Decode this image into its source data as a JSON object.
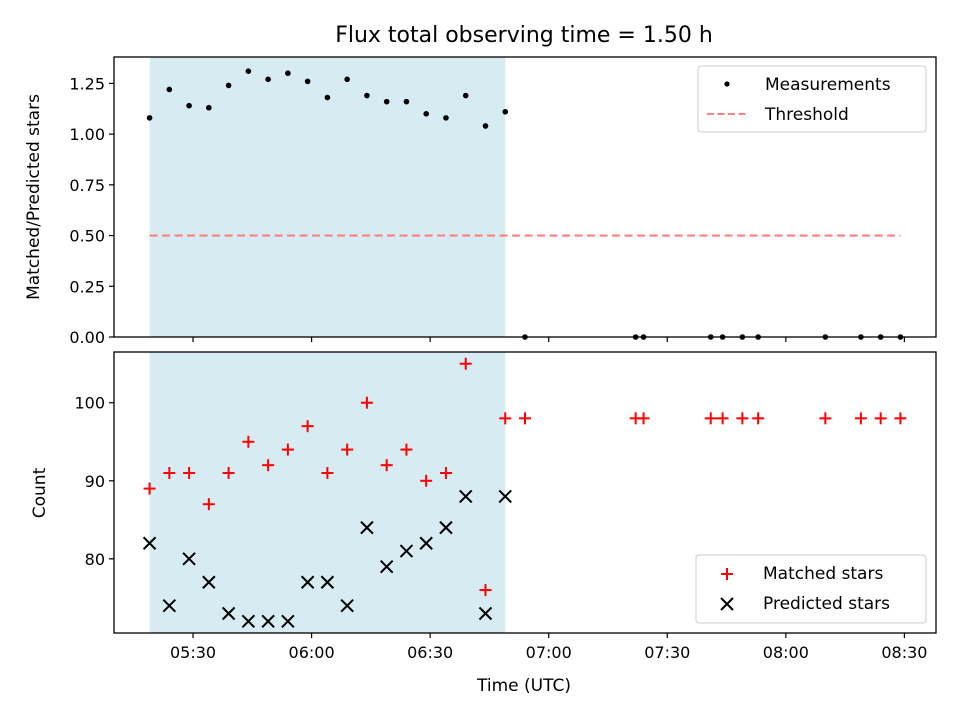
{
  "chart_data": [
    {
      "type": "scatter",
      "title": "Flux total observing time = 1.50 h",
      "ylabel": "Matched/Predicted stars",
      "xlim": [
        "05:10",
        "08:38"
      ],
      "ylim": [
        0,
        1.38
      ],
      "yticks": [
        "0.00",
        "0.25",
        "0.50",
        "0.75",
        "1.00",
        "1.25"
      ],
      "grid": false,
      "legend_position": "top-right",
      "shaded_interval": {
        "start": "05:19",
        "end": "06:49",
        "color": "#add8e6"
      },
      "series": [
        {
          "name": "Measurements",
          "marker": "dot",
          "color": "#000000",
          "x": [
            "05:19",
            "05:24",
            "05:29",
            "05:34",
            "05:39",
            "05:44",
            "05:49",
            "05:54",
            "05:59",
            "06:04",
            "06:09",
            "06:14",
            "06:19",
            "06:24",
            "06:29",
            "06:34",
            "06:39",
            "06:44",
            "06:49",
            "06:54",
            "07:22",
            "07:24",
            "07:41",
            "07:44",
            "07:49",
            "07:53",
            "08:10",
            "08:19",
            "08:24",
            "08:29"
          ],
          "y": [
            1.08,
            1.22,
            1.14,
            1.13,
            1.24,
            1.31,
            1.27,
            1.3,
            1.26,
            1.18,
            1.27,
            1.19,
            1.16,
            1.16,
            1.1,
            1.08,
            1.19,
            1.04,
            1.11,
            0,
            0,
            0,
            0,
            0,
            0,
            0,
            0,
            0,
            0,
            0
          ]
        },
        {
          "name": "Threshold",
          "marker": "dashed-line",
          "color": "#ff7f7f",
          "x": [
            "05:19",
            "08:29"
          ],
          "y": [
            0.5,
            0.5
          ]
        }
      ]
    },
    {
      "type": "scatter",
      "xlabel": "Time (UTC)",
      "ylabel": "Count",
      "xlim": [
        "05:10",
        "08:38"
      ],
      "ylim": [
        70.5,
        106.5
      ],
      "yticks": [
        "80",
        "90",
        "100"
      ],
      "xticks": [
        "05:30",
        "06:00",
        "06:30",
        "07:00",
        "07:30",
        "08:00",
        "08:30"
      ],
      "grid": false,
      "legend_position": "bottom-right",
      "shaded_interval": {
        "start": "05:19",
        "end": "06:49",
        "color": "#add8e6"
      },
      "series": [
        {
          "name": "Matched stars",
          "marker": "plus",
          "color": "#ff0000",
          "x": [
            "05:19",
            "05:24",
            "05:29",
            "05:34",
            "05:39",
            "05:44",
            "05:49",
            "05:54",
            "05:59",
            "06:04",
            "06:09",
            "06:14",
            "06:19",
            "06:24",
            "06:29",
            "06:34",
            "06:39",
            "06:44",
            "06:49",
            "06:54",
            "07:22",
            "07:24",
            "07:41",
            "07:44",
            "07:49",
            "07:53",
            "08:10",
            "08:19",
            "08:24",
            "08:29"
          ],
          "y": [
            89,
            91,
            91,
            87,
            91,
            95,
            92,
            94,
            97,
            91,
            94,
            100,
            92,
            94,
            90,
            91,
            105,
            76,
            98,
            98,
            98,
            98,
            98,
            98,
            98,
            98,
            98,
            98,
            98,
            98
          ]
        },
        {
          "name": "Predicted stars",
          "marker": "x",
          "color": "#000000",
          "x": [
            "05:19",
            "05:24",
            "05:29",
            "05:34",
            "05:39",
            "05:44",
            "05:49",
            "05:54",
            "05:59",
            "06:04",
            "06:09",
            "06:14",
            "06:19",
            "06:24",
            "06:29",
            "06:34",
            "06:39",
            "06:44",
            "06:49"
          ],
          "y": [
            82,
            74,
            80,
            77,
            73,
            72,
            72,
            72,
            77,
            77,
            74,
            84,
            79,
            81,
            82,
            84,
            88,
            73,
            88
          ]
        }
      ]
    }
  ]
}
